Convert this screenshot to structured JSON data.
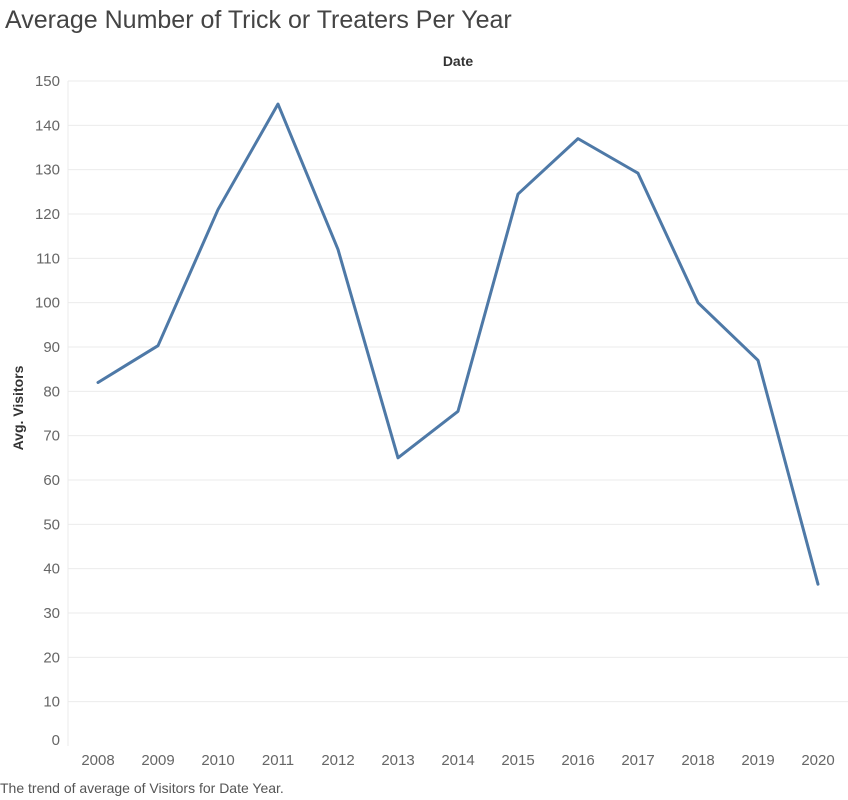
{
  "title": "Average Number of Trick or Treaters Per Year",
  "caption": "The trend of average of Visitors for Date Year.",
  "chart_data": {
    "type": "line",
    "title": "Average Number of Trick or Treaters Per Year",
    "xlabel": "Date",
    "ylabel": "Avg. Visitors",
    "x": [
      "2008",
      "2009",
      "2010",
      "2011",
      "2012",
      "2013",
      "2014",
      "2015",
      "2016",
      "2017",
      "2018",
      "2019",
      "2020"
    ],
    "series": [
      {
        "values": [
          82,
          90.3,
          121,
          144.8,
          112,
          65,
          75.5,
          124.5,
          137,
          129.2,
          100,
          87,
          36.5
        ]
      }
    ],
    "ylim": [
      0,
      150
    ],
    "yticks": [
      0,
      10,
      20,
      30,
      40,
      50,
      60,
      70,
      80,
      90,
      100,
      110,
      120,
      130,
      140,
      150
    ],
    "grid": true,
    "line_color": "#4e79a7",
    "grid_color": "#ebebeb"
  }
}
